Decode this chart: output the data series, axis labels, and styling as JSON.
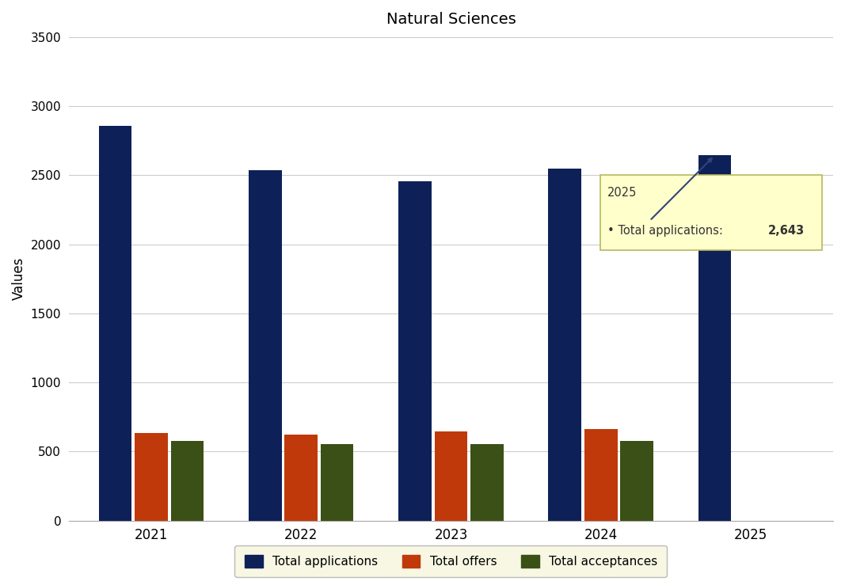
{
  "title": "Natural Sciences",
  "years": [
    "2021",
    "2022",
    "2023",
    "2024",
    "2025"
  ],
  "total_applications": [
    2857,
    2537,
    2455,
    2548,
    2643
  ],
  "total_offers": [
    635,
    625,
    645,
    660,
    null
  ],
  "total_acceptances": [
    575,
    555,
    555,
    575,
    null
  ],
  "bar_color_applications": "#0d2057",
  "bar_color_offers": "#c0390a",
  "bar_color_acceptances": "#3b5016",
  "ylabel": "Values",
  "ylim": [
    0,
    3500
  ],
  "yticks": [
    0,
    500,
    1000,
    1500,
    2000,
    2500,
    3000,
    3500
  ],
  "legend_labels": [
    "Total applications",
    "Total offers",
    "Total acceptances"
  ],
  "tooltip_year": "2025",
  "tooltip_label": "Total applications:",
  "tooltip_value": "2,643",
  "bg_color": "#ffffff",
  "grid_color": "#cccccc"
}
